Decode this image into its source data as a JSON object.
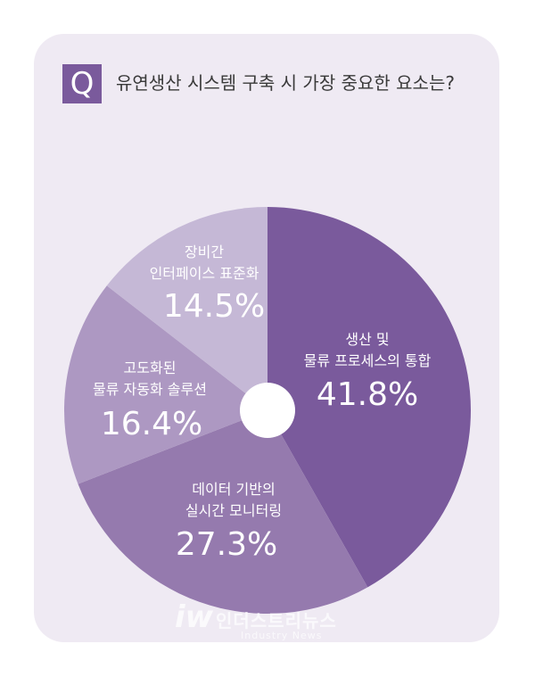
{
  "question": {
    "badge": "Q",
    "text": "유연생산 시스템 구축 시 가장 중요한 요소는?"
  },
  "watermark": {
    "logo": "iw",
    "name": "인더스트리뉴스",
    "name_en": "Industry News"
  },
  "chart_data": {
    "type": "pie",
    "title": "유연생산 시스템 구축 시 가장 중요한 요소는?",
    "start": "12 o'clock, clockwise",
    "slices": [
      {
        "label_lines": [
          "생산 및",
          "물류 프로세스의 통합"
        ],
        "value": 41.8,
        "value_label": "41.8%",
        "color": "#7a5a9c"
      },
      {
        "label_lines": [
          "데이터 기반의",
          "실시간 모니터링"
        ],
        "value": 27.3,
        "value_label": "27.3%",
        "color": "#957aae"
      },
      {
        "label_lines": [
          "고도화된",
          "물류 자동화 솔루션"
        ],
        "value": 16.4,
        "value_label": "16.4%",
        "color": "#ad98c2"
      },
      {
        "label_lines": [
          "장비간",
          "인터페이스 표준화"
        ],
        "value": 14.5,
        "value_label": "14.5%",
        "color": "#c5b8d6"
      }
    ]
  }
}
